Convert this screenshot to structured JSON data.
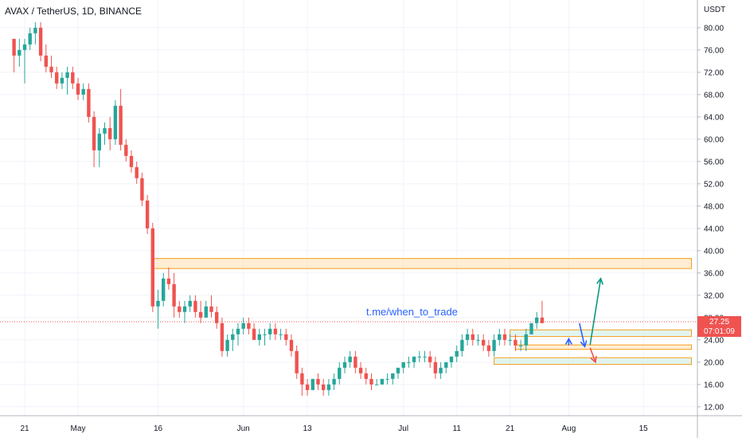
{
  "chart_data": {
    "type": "candlestick",
    "title": "AVAX / TetherUS, 1D, BINANCE",
    "ylabel": "USDT",
    "ylim": [
      10.0,
      84.0
    ],
    "y_ticks": [
      "80.00",
      "76.00",
      "72.00",
      "68.00",
      "64.00",
      "60.00",
      "56.00",
      "52.00",
      "48.00",
      "44.00",
      "40.00",
      "36.00",
      "32.00",
      "28.00",
      "24.00",
      "20.00",
      "16.00",
      "12.00"
    ],
    "x_ticks": [
      {
        "label": "21",
        "day": 0
      },
      {
        "label": "May",
        "day": 10
      },
      {
        "label": "16",
        "day": 25
      },
      {
        "label": "Jun",
        "day": 41
      },
      {
        "label": "13",
        "day": 53
      },
      {
        "label": "Jul",
        "day": 71
      },
      {
        "label": "11",
        "day": 81
      },
      {
        "label": "21",
        "day": 91
      },
      {
        "label": "Aug",
        "day": 102
      },
      {
        "label": "15",
        "day": 116
      }
    ],
    "current_price": "27.25",
    "countdown": "07:01:09",
    "watermark": "t.me/when_to_trade",
    "candles": [
      [
        -2,
        78,
        78,
        72,
        75
      ],
      [
        -1,
        75,
        78,
        73,
        76
      ],
      [
        0,
        76,
        78,
        70,
        77
      ],
      [
        1,
        77,
        80,
        76,
        79
      ],
      [
        2,
        79,
        81,
        77,
        80
      ],
      [
        3,
        80,
        81,
        74,
        75
      ],
      [
        4,
        75,
        77,
        72,
        73
      ],
      [
        5,
        73,
        75,
        71,
        72
      ],
      [
        6,
        72,
        73,
        69,
        70
      ],
      [
        7,
        70,
        72,
        69,
        71
      ],
      [
        8,
        71,
        73,
        68,
        72
      ],
      [
        9,
        72,
        73,
        69,
        70
      ],
      [
        10,
        70,
        71,
        67,
        68
      ],
      [
        11,
        68,
        70,
        67,
        69
      ],
      [
        12,
        69,
        70,
        63,
        64
      ],
      [
        13,
        64,
        65,
        55,
        58
      ],
      [
        14,
        58,
        62,
        55,
        61
      ],
      [
        15,
        61,
        63,
        59,
        62
      ],
      [
        16,
        62,
        64,
        58,
        60
      ],
      [
        17,
        60,
        67,
        59,
        66
      ],
      [
        18,
        66,
        69,
        58,
        59
      ],
      [
        19,
        59,
        60,
        56,
        57
      ],
      [
        20,
        57,
        58,
        54,
        55
      ],
      [
        21,
        55,
        56,
        52,
        53
      ],
      [
        22,
        53,
        54,
        48,
        49
      ],
      [
        23,
        49,
        50,
        43,
        44
      ],
      [
        24,
        44,
        45,
        29,
        30
      ],
      [
        25,
        30,
        33,
        26,
        31
      ],
      [
        26,
        31,
        36,
        30,
        35
      ],
      [
        27,
        35,
        37,
        33,
        34
      ],
      [
        28,
        34,
        36,
        28,
        30
      ],
      [
        29,
        30,
        31,
        28,
        29
      ],
      [
        30,
        29,
        31,
        27,
        30
      ],
      [
        31,
        30,
        32,
        29,
        31
      ],
      [
        32,
        31,
        32,
        28,
        29
      ],
      [
        33,
        29,
        31,
        27,
        28
      ],
      [
        34,
        28,
        31,
        28,
        30
      ],
      [
        35,
        30,
        32,
        28,
        29
      ],
      [
        36,
        29,
        30,
        26,
        27
      ],
      [
        37,
        27,
        28,
        21,
        22
      ],
      [
        38,
        22,
        25,
        21,
        24
      ],
      [
        39,
        24,
        26,
        22,
        25
      ],
      [
        40,
        25,
        27,
        23,
        26
      ],
      [
        41,
        26,
        28,
        25,
        27
      ],
      [
        42,
        27,
        28,
        25,
        26
      ],
      [
        43,
        26,
        27,
        24,
        24
      ],
      [
        44,
        24,
        26,
        23,
        25
      ],
      [
        45,
        25,
        26,
        23,
        25
      ],
      [
        46,
        25,
        27,
        24,
        26
      ],
      [
        47,
        26,
        27,
        24,
        25
      ],
      [
        48,
        25,
        26,
        24,
        25
      ],
      [
        49,
        25,
        26,
        23,
        24
      ],
      [
        50,
        24,
        25,
        21,
        22
      ],
      [
        51,
        22,
        23,
        17,
        18
      ],
      [
        52,
        18,
        19,
        14,
        16
      ],
      [
        53,
        16,
        17,
        14,
        15
      ],
      [
        54,
        15,
        17,
        15,
        17
      ],
      [
        55,
        17,
        18,
        15,
        16
      ],
      [
        56,
        16,
        17,
        14,
        15
      ],
      [
        57,
        15,
        17,
        14,
        16
      ],
      [
        58,
        16,
        18,
        15,
        17
      ],
      [
        59,
        17,
        20,
        16,
        19
      ],
      [
        60,
        19,
        21,
        18,
        20
      ],
      [
        61,
        20,
        22,
        19,
        21
      ],
      [
        62,
        21,
        22,
        18,
        19
      ],
      [
        63,
        19,
        20,
        17,
        18
      ],
      [
        64,
        18,
        19,
        16,
        17
      ],
      [
        65,
        17,
        18,
        15,
        16
      ],
      [
        66,
        16,
        17,
        16,
        16
      ],
      [
        67,
        16,
        17,
        16,
        17
      ],
      [
        68,
        17,
        18,
        16,
        17
      ],
      [
        69,
        17,
        18,
        16,
        18
      ],
      [
        70,
        18,
        19,
        17,
        19
      ],
      [
        71,
        19,
        20,
        18,
        20
      ],
      [
        72,
        20,
        21,
        19,
        20
      ],
      [
        73,
        20,
        21,
        19,
        21
      ],
      [
        74,
        21,
        22,
        20,
        21
      ],
      [
        75,
        21,
        22,
        20,
        21
      ],
      [
        76,
        21,
        22,
        19,
        20
      ],
      [
        77,
        20,
        21,
        17,
        18
      ],
      [
        78,
        18,
        20,
        17,
        19
      ],
      [
        79,
        19,
        20,
        18,
        20
      ],
      [
        80,
        20,
        21,
        19,
        21
      ],
      [
        81,
        21,
        23,
        20,
        22
      ],
      [
        82,
        22,
        25,
        21,
        24
      ],
      [
        83,
        24,
        26,
        23,
        25
      ],
      [
        84,
        25,
        26,
        23,
        24
      ],
      [
        85,
        24,
        25,
        23,
        24
      ],
      [
        86,
        24,
        25,
        22,
        23
      ],
      [
        87,
        23,
        24,
        21,
        22
      ],
      [
        88,
        22,
        25,
        21,
        24
      ],
      [
        89,
        24,
        26,
        23,
        25
      ],
      [
        90,
        25,
        26,
        23,
        24
      ],
      [
        91,
        24,
        25,
        23,
        24
      ],
      [
        92,
        24,
        25,
        22,
        23
      ],
      [
        93,
        23,
        24,
        22,
        23
      ],
      [
        94,
        23,
        26,
        22,
        25
      ],
      [
        95,
        25,
        27,
        25,
        27
      ],
      [
        96,
        27,
        29,
        26,
        28
      ],
      [
        97,
        28,
        31,
        27,
        27
      ]
    ],
    "zones": [
      {
        "day_start": 24,
        "day_end": 125,
        "low": 36.8,
        "high": 38.6,
        "fill": "#ffe0b2",
        "stroke": "#f59d1b"
      },
      {
        "day_start": 91,
        "day_end": 125,
        "low": 24.6,
        "high": 25.8,
        "fill": "#c8ece4",
        "stroke": "#f59d1b"
      },
      {
        "day_start": 92,
        "day_end": 125,
        "low": 22.3,
        "high": 23.1,
        "fill": "#ffe0b2",
        "stroke": "#f59d1b"
      },
      {
        "day_start": 88,
        "day_end": 125,
        "low": 19.6,
        "high": 20.8,
        "fill": "#c8ece4",
        "stroke": "#f59d1b"
      }
    ],
    "arrows": [
      {
        "x1": 102,
        "y1": 23.0,
        "x2": 102,
        "y2": 24.2,
        "color": "#2962ff"
      },
      {
        "x1": 104,
        "y1": 27.0,
        "x2": 105,
        "y2": 22.8,
        "color": "#2962ff"
      },
      {
        "x1": 106,
        "y1": 23.1,
        "x2": 108,
        "y2": 35.0,
        "color": "#089981"
      },
      {
        "x1": 106,
        "y1": 22.6,
        "x2": 107,
        "y2": 20.0,
        "color": "#ef5350"
      }
    ],
    "colors": {
      "up": "#26a69a",
      "down": "#ef5350",
      "grid": "#f0f3fa",
      "axis": "#b2b5be"
    },
    "grid": true
  }
}
